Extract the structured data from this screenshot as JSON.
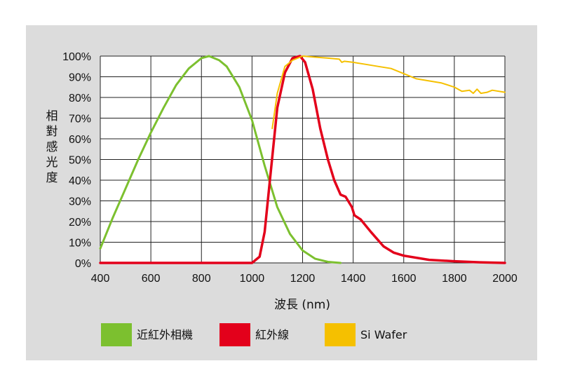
{
  "chart_data": {
    "type": "line",
    "xlabel": "波長 (nm)",
    "ylabel": "相對感光度",
    "xlim": [
      400,
      2000
    ],
    "ylim": [
      0,
      100
    ],
    "x_ticks": [
      "400",
      "600",
      "800",
      "1000",
      "1200",
      "1400",
      "1600",
      "1800",
      "2000"
    ],
    "y_ticks": [
      "0%",
      "10%",
      "20%",
      "30%",
      "40%",
      "50%",
      "60%",
      "70%",
      "80%",
      "90%",
      "100%"
    ],
    "grid": true,
    "legend_position": "bottom",
    "series": [
      {
        "name": "近紅外相機",
        "color": "#7cc02f",
        "points": [
          [
            400,
            7
          ],
          [
            450,
            22
          ],
          [
            500,
            36
          ],
          [
            550,
            50
          ],
          [
            600,
            63
          ],
          [
            650,
            75
          ],
          [
            700,
            86
          ],
          [
            750,
            94
          ],
          [
            800,
            99
          ],
          [
            830,
            100
          ],
          [
            870,
            98
          ],
          [
            900,
            95
          ],
          [
            950,
            85
          ],
          [
            1000,
            69
          ],
          [
            1050,
            47
          ],
          [
            1100,
            27
          ],
          [
            1150,
            14
          ],
          [
            1200,
            6
          ],
          [
            1250,
            2
          ],
          [
            1300,
            0.5
          ],
          [
            1350,
            0
          ]
        ]
      },
      {
        "name": "紅外線",
        "color": "#e3001b",
        "points": [
          [
            400,
            0
          ],
          [
            1000,
            0
          ],
          [
            1030,
            3
          ],
          [
            1050,
            15
          ],
          [
            1075,
            45
          ],
          [
            1100,
            75
          ],
          [
            1130,
            92
          ],
          [
            1160,
            99
          ],
          [
            1190,
            100
          ],
          [
            1210,
            97
          ],
          [
            1240,
            84
          ],
          [
            1270,
            65
          ],
          [
            1300,
            50
          ],
          [
            1325,
            40
          ],
          [
            1350,
            33
          ],
          [
            1370,
            32
          ],
          [
            1395,
            27
          ],
          [
            1405,
            23
          ],
          [
            1430,
            21
          ],
          [
            1470,
            15
          ],
          [
            1520,
            8
          ],
          [
            1560,
            5
          ],
          [
            1600,
            3.5
          ],
          [
            1700,
            1.5
          ],
          [
            1800,
            0.8
          ],
          [
            1900,
            0.3
          ],
          [
            2000,
            0
          ]
        ]
      },
      {
        "name": "Si Wafer",
        "color": "#f5c000",
        "points": [
          [
            1080,
            65
          ],
          [
            1100,
            82
          ],
          [
            1130,
            95
          ],
          [
            1160,
            98
          ],
          [
            1200,
            100
          ],
          [
            1250,
            99.5
          ],
          [
            1300,
            99
          ],
          [
            1345,
            98.5
          ],
          [
            1355,
            97
          ],
          [
            1365,
            97.5
          ],
          [
            1400,
            97
          ],
          [
            1450,
            96
          ],
          [
            1500,
            95
          ],
          [
            1550,
            94
          ],
          [
            1600,
            91.5
          ],
          [
            1650,
            89
          ],
          [
            1700,
            88
          ],
          [
            1750,
            87
          ],
          [
            1800,
            85
          ],
          [
            1830,
            83
          ],
          [
            1860,
            83.5
          ],
          [
            1875,
            82
          ],
          [
            1890,
            84
          ],
          [
            1905,
            82
          ],
          [
            1930,
            82.5
          ],
          [
            1950,
            83.5
          ],
          [
            2000,
            82.5
          ]
        ]
      }
    ]
  }
}
